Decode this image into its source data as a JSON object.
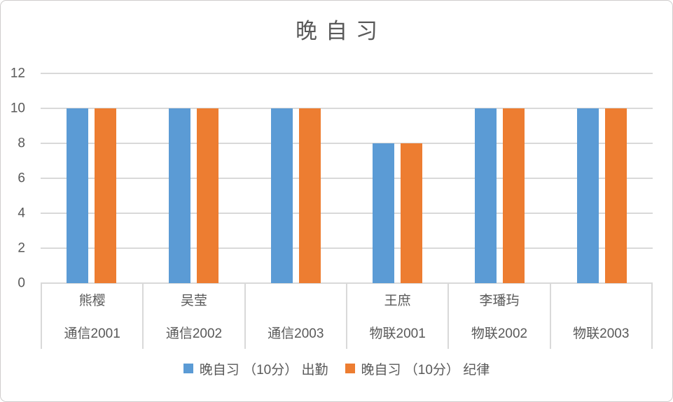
{
  "chart_data": {
    "type": "bar",
    "title": "晚自习",
    "categories": [
      {
        "name": "熊樱",
        "class": "通信2001"
      },
      {
        "name": "吴莹",
        "class": "通信2002"
      },
      {
        "name": "",
        "class": "通信2003"
      },
      {
        "name": "王庶",
        "class": "物联2001"
      },
      {
        "name": "李璠玙",
        "class": "物联2002"
      },
      {
        "name": "",
        "class": "物联2003"
      }
    ],
    "series": [
      {
        "name": "晚自习 （10分） 出勤",
        "color": "#5B9BD5",
        "values": [
          10,
          10,
          10,
          8,
          10,
          10
        ]
      },
      {
        "name": "晚自习 （10分） 纪律",
        "color": "#ED7D31",
        "values": [
          10,
          10,
          10,
          8,
          10,
          10
        ]
      }
    ],
    "yticks": [
      0,
      2,
      4,
      6,
      8,
      10,
      12
    ],
    "ylim": [
      0,
      12
    ],
    "grid": true,
    "legend_position": "bottom"
  },
  "style": {
    "text_color": "#595959",
    "grid_color": "#D9D9D9",
    "border_color": "#CFCDCD",
    "background": "#FFFFFF"
  }
}
